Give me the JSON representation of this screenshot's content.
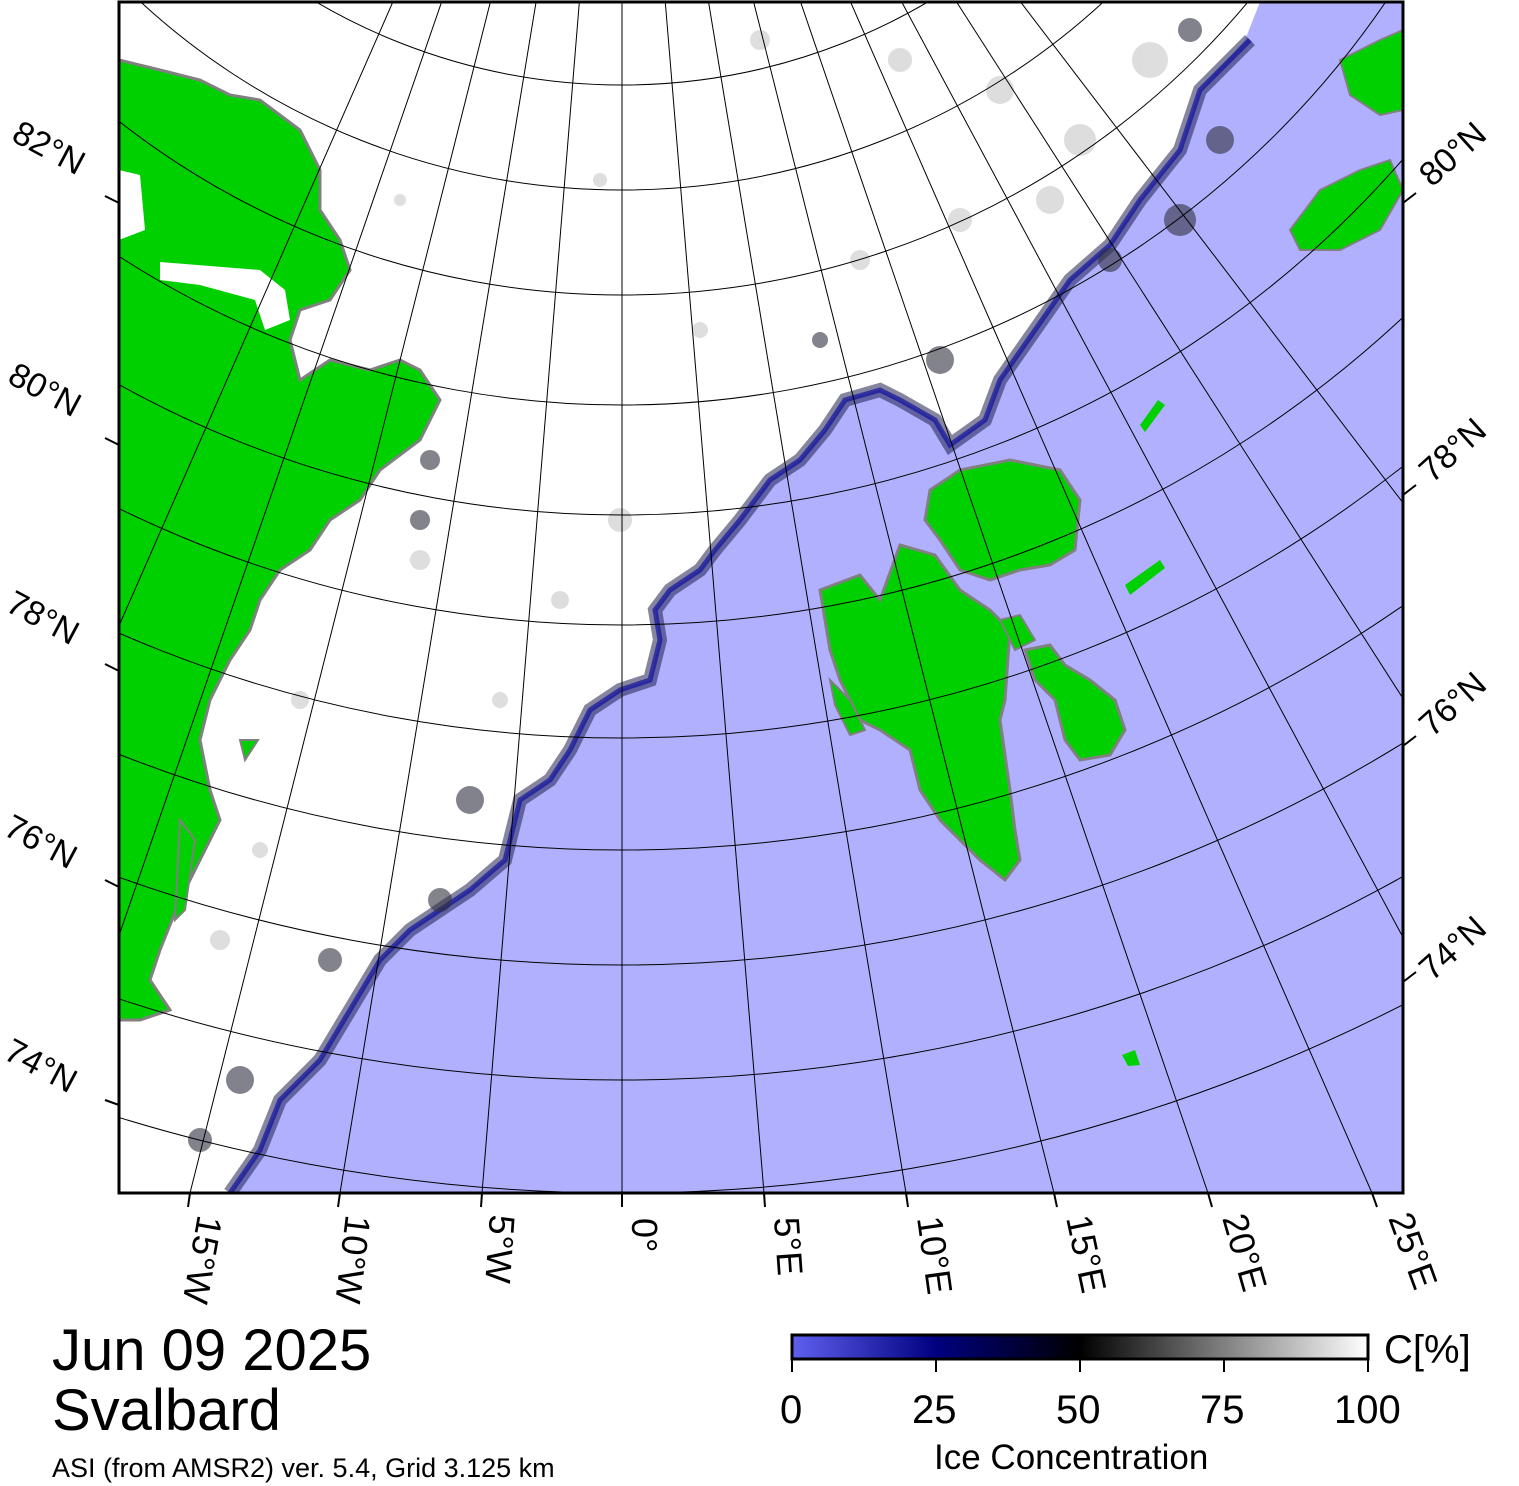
{
  "date": "Jun 09 2025",
  "region": "Svalbard",
  "source": "ASI (from AMSR2) ver. 5.4,  Grid 3.125 km",
  "lat_labels_left": [
    "82°N",
    "80°N",
    "78°N",
    "76°N",
    "74°N"
  ],
  "lat_labels_right": [
    "80°N",
    "78°N",
    "76°N",
    "74°N"
  ],
  "lon_labels": [
    "15°W",
    "10°W",
    "5°W",
    "0°",
    "5°E",
    "10°E",
    "15°E",
    "20°E",
    "25°E"
  ],
  "colorbar": {
    "unit": "C[%]",
    "ticks": [
      "0",
      "25",
      "50",
      "75",
      "100"
    ],
    "title": "Ice Concentration"
  },
  "colors": {
    "open_water": "#b0b0ff",
    "land": "#00d000",
    "coast_mask": "#808080",
    "ice_full": "#ffffff",
    "ice_low": "#000050"
  }
}
